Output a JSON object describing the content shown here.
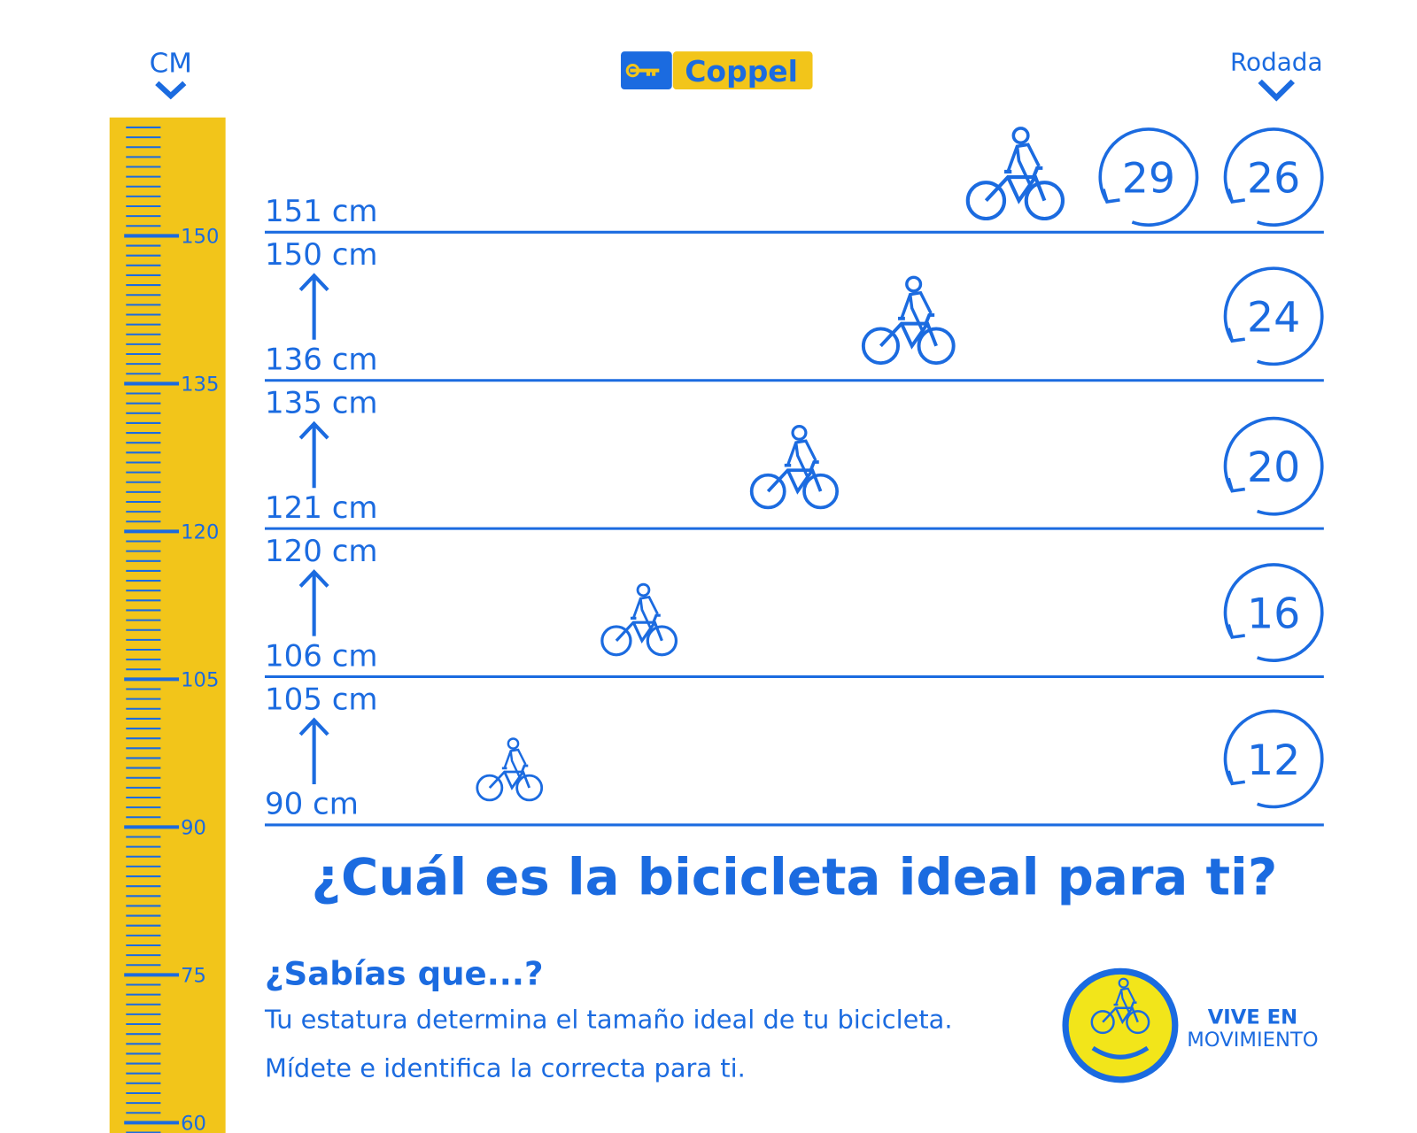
{
  "header": {
    "ruler_label": "CM",
    "logo": "Coppel",
    "size_label": "Rodada"
  },
  "ruler": {
    "labels": [
      "150",
      "135",
      "120",
      "105",
      "90",
      "75",
      "60"
    ]
  },
  "rows": [
    {
      "bottom": "151 cm",
      "sizes": [
        "29",
        "26"
      ]
    },
    {
      "top": "150 cm",
      "bottom": "136 cm",
      "sizes": [
        "24"
      ]
    },
    {
      "top": "135 cm",
      "bottom": "121 cm",
      "sizes": [
        "20"
      ]
    },
    {
      "top": "120 cm",
      "bottom": "106 cm",
      "sizes": [
        "16"
      ]
    },
    {
      "top": "105 cm",
      "bottom": "90 cm",
      "sizes": [
        "12"
      ]
    }
  ],
  "title": "¿Cuál es la bicicleta ideal para ti?",
  "note": {
    "heading": "¿Sabías que...?",
    "lines": [
      "Tu estatura determina el tamaño ideal de tu bicicleta.",
      "Mídete e identifica la correcta para ti."
    ]
  },
  "badge": {
    "line1": "VIVE EN",
    "line2": "MOVIMIENTO"
  }
}
